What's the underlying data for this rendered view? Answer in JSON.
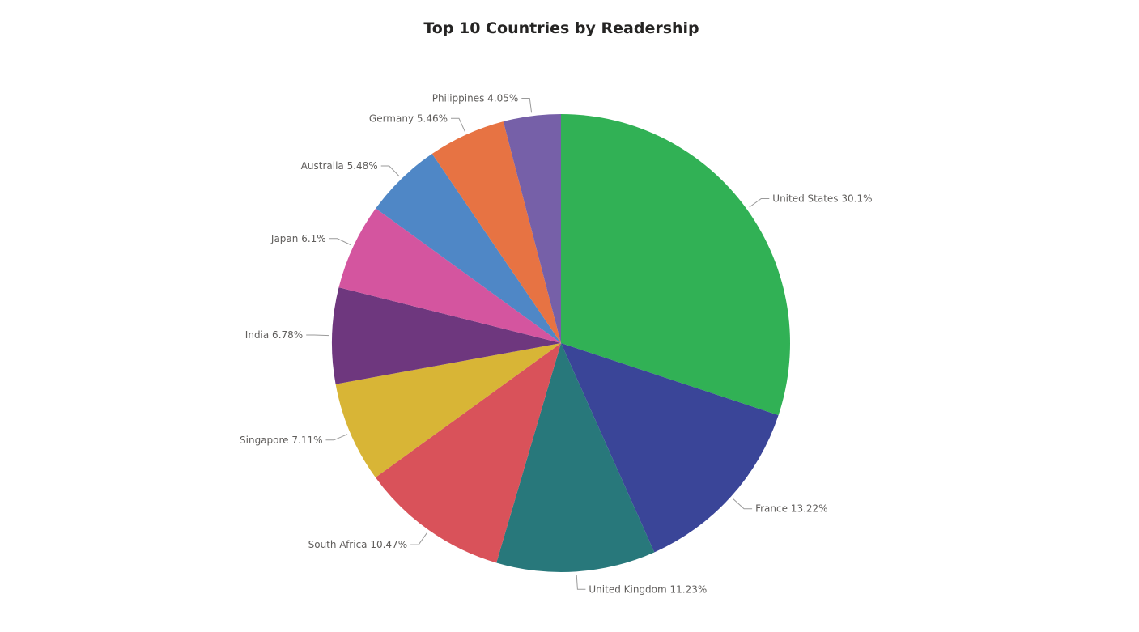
{
  "chart_data": {
    "type": "pie",
    "title": "Top 10 Countries by Readership",
    "slices": [
      {
        "label": "United States",
        "value": 30.1,
        "display": "30.1%",
        "color": "#31b155"
      },
      {
        "label": "France",
        "value": 13.22,
        "display": "13.22%",
        "color": "#3a4598"
      },
      {
        "label": "United Kingdom",
        "value": 11.23,
        "display": "11.23%",
        "color": "#28787b"
      },
      {
        "label": "South Africa",
        "value": 10.47,
        "display": "10.47%",
        "color": "#d9525a"
      },
      {
        "label": "Singapore",
        "value": 7.11,
        "display": "7.11%",
        "color": "#d8b536"
      },
      {
        "label": "India",
        "value": 6.78,
        "display": "6.78%",
        "color": "#6e377e"
      },
      {
        "label": "Japan",
        "value": 6.1,
        "display": "6.1%",
        "color": "#d4559f"
      },
      {
        "label": "Australia",
        "value": 5.48,
        "display": "5.48%",
        "color": "#4f87c6"
      },
      {
        "label": "Germany",
        "value": 5.46,
        "display": "5.46%",
        "color": "#e77343"
      },
      {
        "label": "Philippines",
        "value": 4.05,
        "display": "4.05%",
        "color": "#7660a8"
      }
    ],
    "legend": "none",
    "labels": "outside-with-leader-lines"
  }
}
